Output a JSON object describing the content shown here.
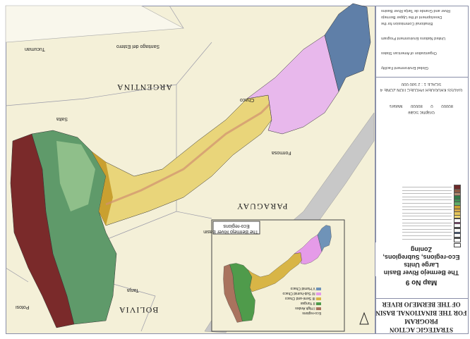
{
  "map": {
    "countries": [
      "ARGENTINA",
      "BOLIVIA",
      "PARAGUAY"
    ],
    "places": [
      "Salta",
      "Chaco",
      "Formosa",
      "Tucuman",
      "Santiago del Estero",
      "Tarija",
      "Potosi"
    ],
    "colors": {
      "puna": "#7a2a2a",
      "yungas": "#5f9a6a",
      "semiarid_chaco": "#e9d57a",
      "transitional_chaco": "#e8b8ec",
      "humid_chaco": "#5f7fa8",
      "background": "#f4f0d8"
    }
  },
  "inset": {
    "title": "The Bermejo River Basin",
    "subtitle": "Eco-regions",
    "legend": [
      {
        "label": "V Humid Chaco",
        "color": "#6f93b8"
      },
      {
        "label": "IV Sub-humid Chaco",
        "color": "#e59be8"
      },
      {
        "label": "III Semi-arid Chaco",
        "color": "#d8b546"
      },
      {
        "label": "II Yungas",
        "color": "#4f9b4b"
      },
      {
        "label": "I High Andes",
        "color": "#a9735e"
      }
    ],
    "legend_header": "Eco-regions"
  },
  "panel": {
    "organizations": [
      "Binational Commission for the Development of the Upper Bermejo River and Grande de Tarija River Basins",
      "United Nations Environment Program",
      "Organization of American States",
      "Global Environment Facility"
    ],
    "scale": "SCALE 1 : 2 500 000",
    "projection": "GAUSS KRUGUER PROJECTION  ZONE 4",
    "scale_ticks": [
      "80000",
      "0",
      "80000",
      "Meters"
    ],
    "graphic_scale": "Graphic Scale",
    "map_no": "Map No 9",
    "map_title": [
      "Zoning",
      "Eco-regions, Subregions,",
      "Large Units",
      "The Bermejo River Basin"
    ],
    "program_title": [
      "STRATEGIC ACTION PROGRAM",
      "FOR THE BINATIONAL BASIN",
      "OF THE BERMEJO RIVER"
    ],
    "legend_colors": [
      "#9fc3d6",
      "#7f9fc2",
      "#4f6b9a",
      "#e6b0ea",
      "#d68fd8",
      "#a0508a",
      "#f1e58c",
      "#efd873",
      "#e6c65a",
      "#d8a848",
      "#c9a030",
      "#5fae67",
      "#3f8f55",
      "#2f7a48",
      "#b08b70",
      "#8a5a45",
      "#6e2a2a"
    ]
  }
}
